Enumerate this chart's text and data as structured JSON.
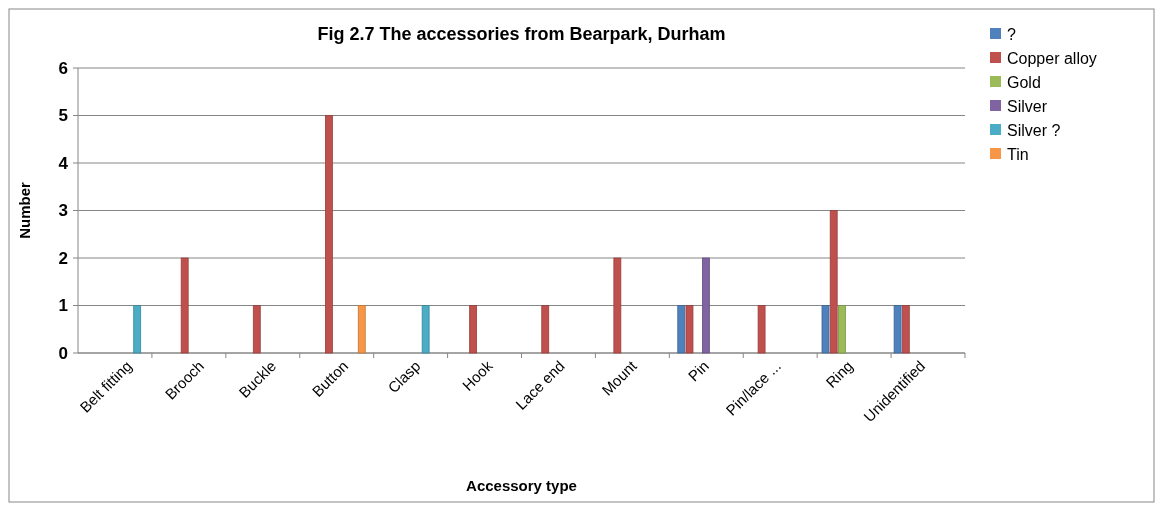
{
  "chart_data": {
    "type": "bar",
    "title": "Fig 2.7 The accessories from Bearpark, Durham",
    "xlabel": "Accessory type",
    "ylabel": "Number",
    "categories": [
      "Belt fitting",
      "Brooch",
      "Buckle",
      "Button",
      "Clasp",
      "Hook",
      "Lace end",
      "Mount",
      "Pin",
      "Pin/lace ...",
      "Ring",
      "Unidentified"
    ],
    "series": [
      {
        "name": "?",
        "color": "#4f81bd",
        "values": [
          null,
          null,
          null,
          null,
          null,
          null,
          null,
          null,
          1,
          null,
          1,
          1
        ]
      },
      {
        "name": "Copper alloy",
        "color": "#c0504d",
        "values": [
          null,
          2,
          1,
          5,
          null,
          1,
          1,
          2,
          1,
          1,
          3,
          1
        ]
      },
      {
        "name": "Gold",
        "color": "#9bbb59",
        "values": [
          null,
          null,
          null,
          null,
          null,
          null,
          null,
          null,
          null,
          null,
          1,
          null
        ]
      },
      {
        "name": "Silver",
        "color": "#8064a2",
        "values": [
          null,
          null,
          null,
          null,
          null,
          null,
          null,
          null,
          2,
          null,
          null,
          null
        ]
      },
      {
        "name": "Silver ?",
        "color": "#4bacc6",
        "values": [
          1,
          null,
          null,
          null,
          1,
          null,
          null,
          null,
          null,
          null,
          null,
          null
        ]
      },
      {
        "name": "Tin",
        "color": "#f79646",
        "values": [
          null,
          null,
          null,
          1,
          null,
          null,
          null,
          null,
          null,
          null,
          null,
          null
        ]
      }
    ],
    "ylim": [
      0,
      6
    ],
    "yticks": [
      0,
      1,
      2,
      3,
      4,
      5,
      6
    ],
    "grid": "y",
    "legend": "top right"
  }
}
